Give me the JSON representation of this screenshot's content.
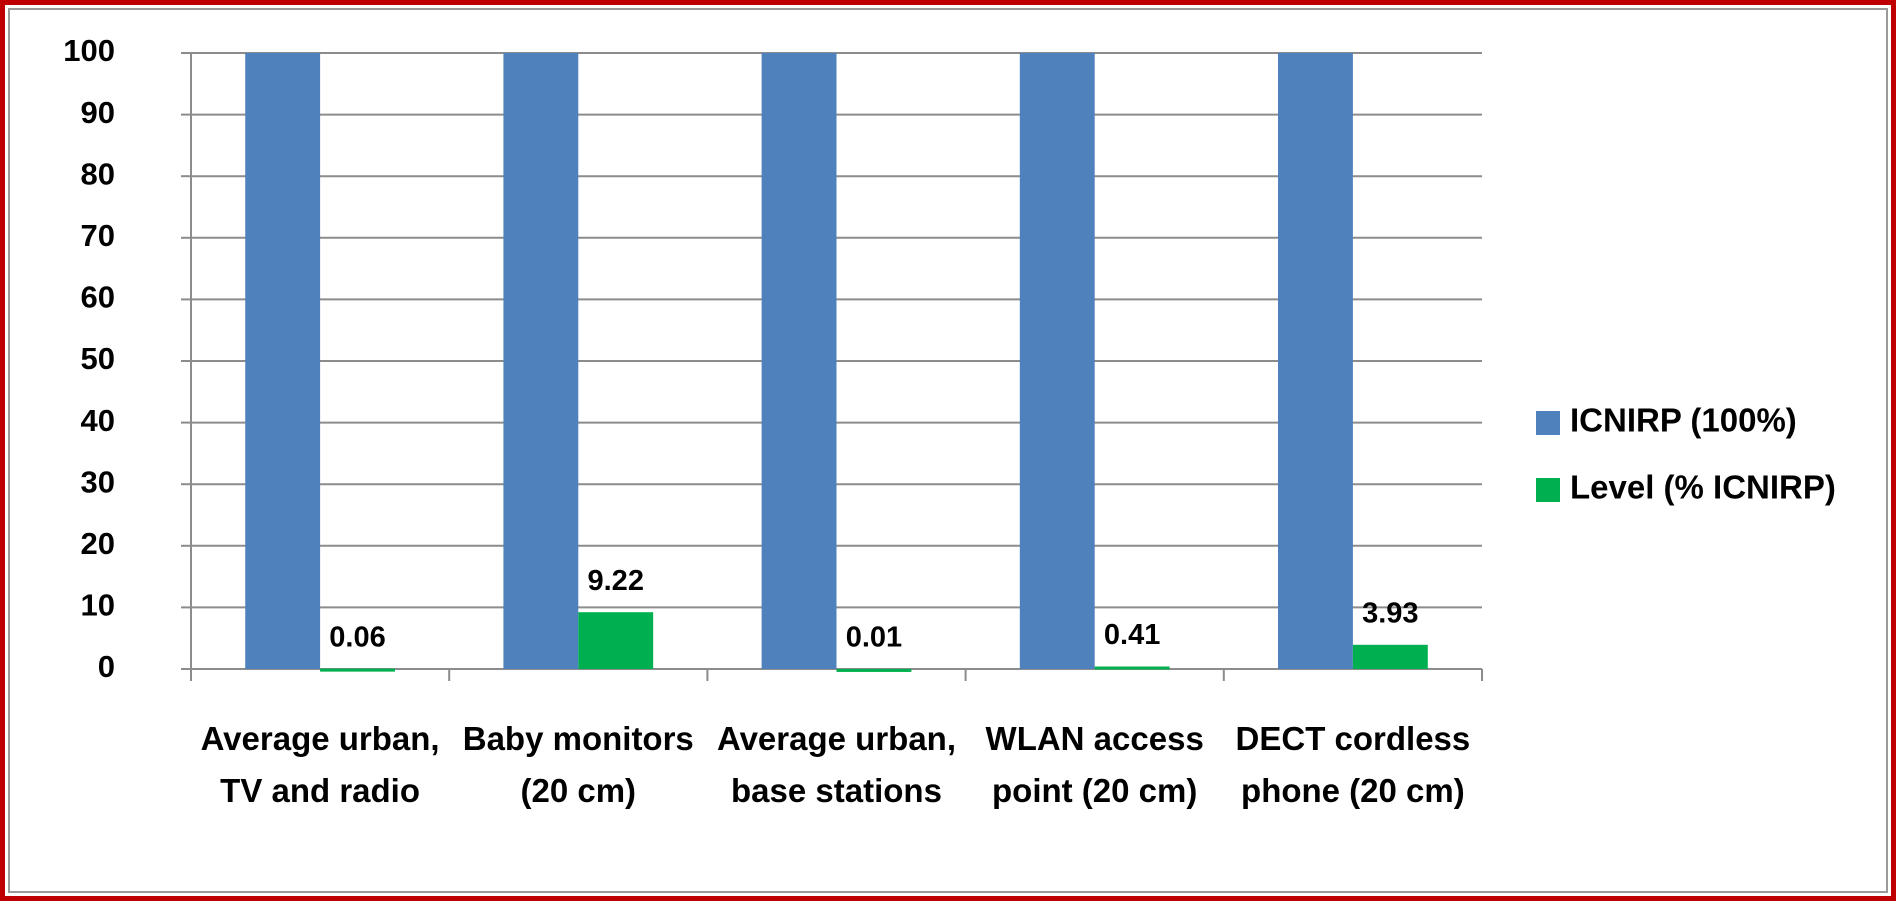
{
  "chart_data": {
    "type": "bar",
    "categories": [
      "Average urban, TV and radio",
      "Baby monitors (20 cm)",
      "Average urban, base stations",
      "WLAN access point (20 cm)",
      "DECT cordless phone (20 cm)"
    ],
    "series": [
      {
        "name": "ICNIRP (100%)",
        "color": "#4f81bd",
        "values": [
          100,
          100,
          100,
          100,
          100
        ]
      },
      {
        "name": "Level (% ICNIRP)",
        "color": "#00b050",
        "values": [
          0.06,
          9.22,
          0.01,
          0.41,
          3.93
        ]
      }
    ],
    "ylim": [
      0,
      100
    ],
    "yticks": [
      0,
      10,
      20,
      30,
      40,
      50,
      60,
      70,
      80,
      90,
      100
    ],
    "grid": true,
    "legend": "right"
  }
}
